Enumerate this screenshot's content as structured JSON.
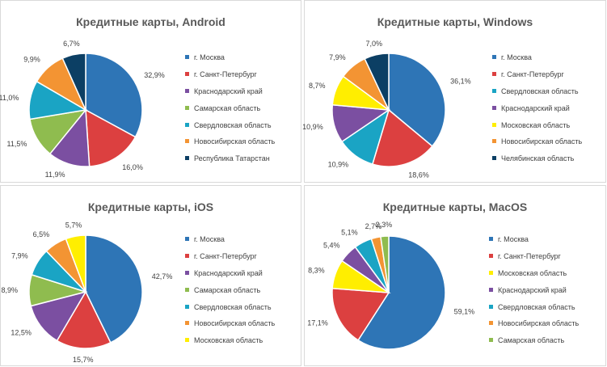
{
  "chart_data": [
    {
      "type": "pie",
      "title": "Кредитные карты, Android",
      "series": [
        {
          "name": "г. Москва",
          "value": 32.9,
          "label": "32,9%",
          "color": "#2e75b6"
        },
        {
          "name": "г. Санкт-Петербург",
          "value": 16.0,
          "label": "16,0%",
          "color": "#dc4040"
        },
        {
          "name": "Краснодарский край",
          "value": 11.9,
          "label": "11,9%",
          "color": "#7b4fa1"
        },
        {
          "name": "Самарская область",
          "value": 11.5,
          "label": "11,5%",
          "color": "#8fbc4f"
        },
        {
          "name": "Свердловская область",
          "value": 11.0,
          "label": "11,0%",
          "color": "#1aa4c4"
        },
        {
          "name": "Новосибирская область",
          "value": 9.9,
          "label": "9,9%",
          "color": "#f39433"
        },
        {
          "name": "Республика Татарстан",
          "value": 6.7,
          "label": "6,7%",
          "color": "#0c3f64"
        }
      ],
      "legend_position": "right"
    },
    {
      "type": "pie",
      "title": "Кредитные карты, Windows",
      "series": [
        {
          "name": "г. Москва",
          "value": 36.1,
          "label": "36,1%",
          "color": "#2e75b6"
        },
        {
          "name": "г. Санкт-Петербург",
          "value": 18.6,
          "label": "18,6%",
          "color": "#dc4040"
        },
        {
          "name": "Свердловская область",
          "value": 10.9,
          "label": "10,9%",
          "color": "#1aa4c4"
        },
        {
          "name": "Краснодарский край",
          "value": 10.9,
          "label": "10,9%",
          "color": "#7b4fa1"
        },
        {
          "name": "Московская область",
          "value": 8.7,
          "label": "8,7%",
          "color": "#ffee00"
        },
        {
          "name": "Новосибирская область",
          "value": 7.9,
          "label": "7,9%",
          "color": "#f39433"
        },
        {
          "name": "Челябинская область",
          "value": 7.0,
          "label": "7,0%",
          "color": "#0c3f64"
        }
      ],
      "legend_position": "right"
    },
    {
      "type": "pie",
      "title": "Кредитные карты, iOS",
      "series": [
        {
          "name": "г. Москва",
          "value": 42.7,
          "label": "42,7%",
          "color": "#2e75b6"
        },
        {
          "name": "г. Санкт-Петербург",
          "value": 15.7,
          "label": "15,7%",
          "color": "#dc4040"
        },
        {
          "name": "Краснодарский край",
          "value": 12.5,
          "label": "12,5%",
          "color": "#7b4fa1"
        },
        {
          "name": "Самарская область",
          "value": 8.9,
          "label": "8,9%",
          "color": "#8fbc4f"
        },
        {
          "name": "Свердловская область",
          "value": 7.9,
          "label": "7,9%",
          "color": "#1aa4c4"
        },
        {
          "name": "Новосибирская область",
          "value": 6.5,
          "label": "6,5%",
          "color": "#f39433"
        },
        {
          "name": "Московская область",
          "value": 5.7,
          "label": "5,7%",
          "color": "#ffee00"
        }
      ],
      "legend_position": "right"
    },
    {
      "type": "pie",
      "title": "Кредитные карты, MacOS",
      "series": [
        {
          "name": "г. Москва",
          "value": 59.1,
          "label": "59,1%",
          "color": "#2e75b6"
        },
        {
          "name": "г. Санкт-Петербург",
          "value": 17.1,
          "label": "17,1%",
          "color": "#dc4040"
        },
        {
          "name": "Московская область",
          "value": 8.3,
          "label": "8,3%",
          "color": "#ffee00"
        },
        {
          "name": "Краснодарский край",
          "value": 5.4,
          "label": "5,4%",
          "color": "#7b4fa1"
        },
        {
          "name": "Свердловская область",
          "value": 5.1,
          "label": "5,1%",
          "color": "#1aa4c4"
        },
        {
          "name": "Новосибирская область",
          "value": 2.7,
          "label": "2,7%",
          "color": "#f39433"
        },
        {
          "name": "Самарская область",
          "value": 2.3,
          "label": "2,3%",
          "color": "#8fbc4f"
        }
      ],
      "legend_position": "right"
    }
  ]
}
